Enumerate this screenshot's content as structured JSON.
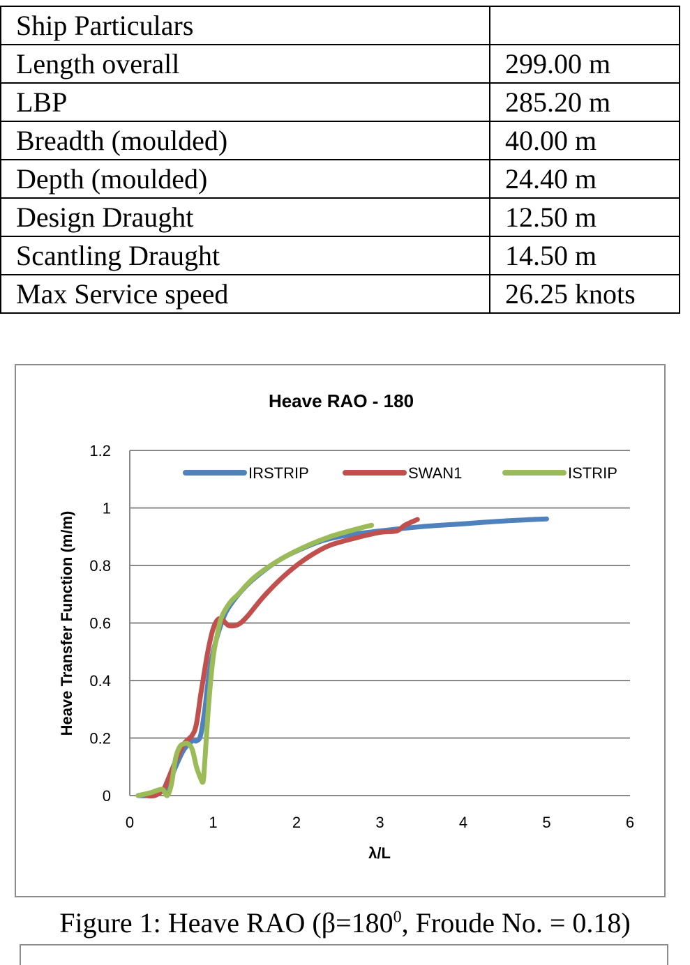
{
  "table": {
    "rows": [
      {
        "label": "Ship Particulars",
        "value": ""
      },
      {
        "label": "Length overall",
        "value": "299.00 m"
      },
      {
        "label": "LBP",
        "value": "285.20 m"
      },
      {
        "label": "Breadth (moulded)",
        "value": "40.00 m"
      },
      {
        "label": "Depth (moulded)",
        "value": "24.40 m"
      },
      {
        "label": "Design Draught",
        "value": "12.50 m"
      },
      {
        "label": "Scantling Draught",
        "value": "14.50 m"
      },
      {
        "label": "Max Service speed",
        "value": "26.25 knots"
      }
    ]
  },
  "caption": {
    "prefix": "Figure 1: Heave RAO (β=180",
    "superscript": "0",
    "suffix": ", Froude No. = 0.18)"
  },
  "chart_data": {
    "type": "line",
    "title": "Heave RAO - 180",
    "xlabel": "λ/L",
    "ylabel": "Heave Transfer Function (m/m)",
    "xlim": [
      0,
      6
    ],
    "ylim": [
      0,
      1.2
    ],
    "xticks": [
      0,
      1,
      2,
      3,
      4,
      5,
      6
    ],
    "yticks": [
      0,
      0.2,
      0.4,
      0.6,
      0.8,
      1,
      1.2
    ],
    "yticklabels": [
      "0",
      "0.2",
      "0.4",
      "0.6",
      "0.8",
      "1",
      "1.2"
    ],
    "grid": "horizontal",
    "legend": "top",
    "series": [
      {
        "name": "IRSTRIP",
        "color": "#4f81bd",
        "x": [
          0.1,
          0.2,
          0.3,
          0.4,
          0.45,
          0.55,
          0.65,
          0.75,
          0.8,
          0.85,
          0.9,
          0.95,
          1.0,
          1.1,
          1.2,
          1.4,
          1.6,
          1.8,
          2.0,
          2.3,
          2.6,
          3.0,
          3.5,
          4.0,
          4.5,
          5.0
        ],
        "y": [
          0.0,
          0.0,
          0.01,
          0.02,
          0.03,
          0.1,
          0.16,
          0.19,
          0.19,
          0.21,
          0.3,
          0.42,
          0.5,
          0.6,
          0.66,
          0.73,
          0.78,
          0.82,
          0.85,
          0.885,
          0.905,
          0.92,
          0.935,
          0.945,
          0.955,
          0.962
        ]
      },
      {
        "name": "SWAN1",
        "color": "#c0504d",
        "x": [
          0.2,
          0.3,
          0.4,
          0.45,
          0.55,
          0.65,
          0.75,
          0.8,
          0.85,
          0.9,
          0.95,
          1.0,
          1.05,
          1.1,
          1.15,
          1.2,
          1.3,
          1.4,
          1.6,
          1.8,
          2.0,
          2.2,
          2.4,
          2.7,
          3.0,
          3.2,
          3.3,
          3.45
        ],
        "y": [
          0.0,
          0.0,
          0.02,
          0.05,
          0.12,
          0.18,
          0.21,
          0.25,
          0.35,
          0.44,
          0.52,
          0.58,
          0.61,
          0.615,
          0.6,
          0.59,
          0.595,
          0.62,
          0.69,
          0.75,
          0.8,
          0.84,
          0.87,
          0.895,
          0.915,
          0.92,
          0.94,
          0.96
        ]
      },
      {
        "name": "ISTRIP",
        "color": "#9bbb59",
        "x": [
          0.1,
          0.25,
          0.35,
          0.4,
          0.45,
          0.5,
          0.55,
          0.6,
          0.65,
          0.7,
          0.75,
          0.8,
          0.85,
          0.88,
          0.9,
          0.95,
          1.0,
          1.05,
          1.1,
          1.2,
          1.3,
          1.5,
          1.8,
          2.1,
          2.4,
          2.7,
          2.9
        ],
        "y": [
          0.0,
          0.01,
          0.02,
          0.02,
          0.0,
          0.04,
          0.13,
          0.17,
          0.18,
          0.18,
          0.16,
          0.1,
          0.06,
          0.05,
          0.12,
          0.33,
          0.48,
          0.56,
          0.62,
          0.67,
          0.7,
          0.76,
          0.82,
          0.865,
          0.9,
          0.925,
          0.94
        ]
      }
    ]
  }
}
